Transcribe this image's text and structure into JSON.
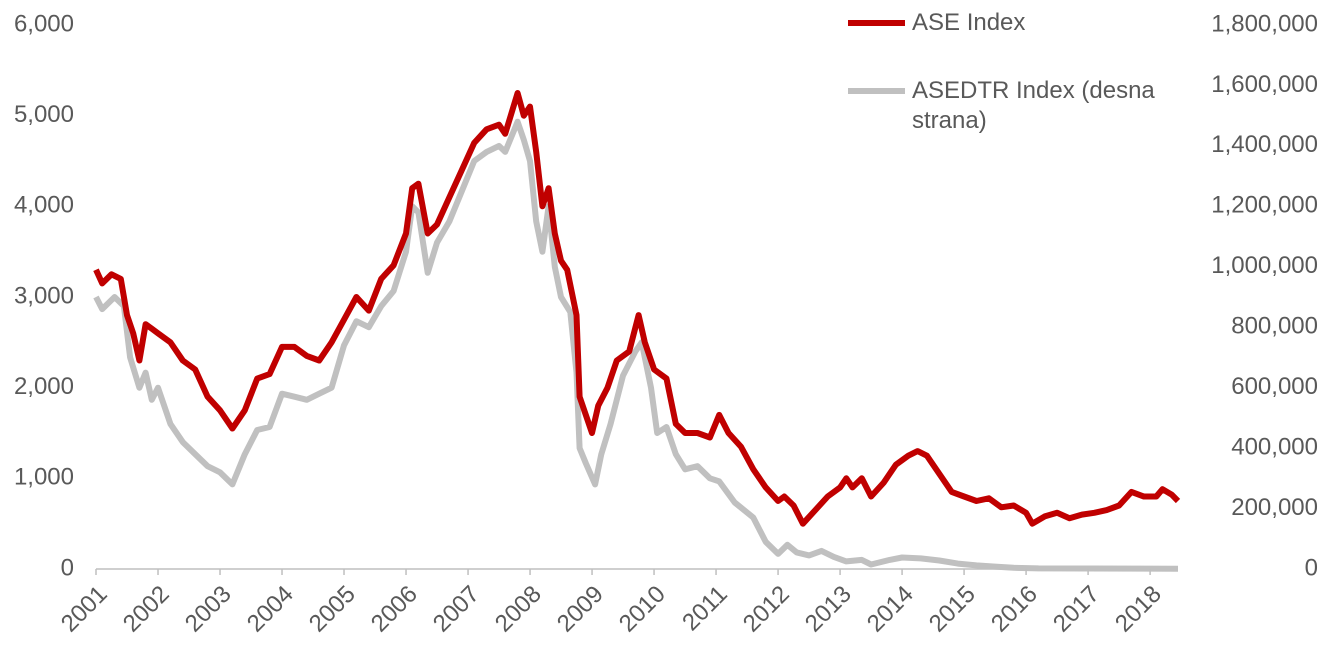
{
  "chart_data": {
    "type": "line",
    "xlim": [
      2001,
      2018.45
    ],
    "xticks": [
      2001,
      2002,
      2003,
      2004,
      2005,
      2006,
      2007,
      2008,
      2009,
      2010,
      2011,
      2012,
      2013,
      2014,
      2015,
      2016,
      2017,
      2018
    ],
    "ylim": [
      0,
      6000
    ],
    "yticks": [
      0,
      {
        "value": 1000,
        "label": "1,000"
      },
      {
        "value": 2000,
        "label": "2,000"
      },
      {
        "value": 3000,
        "label": "3,000"
      },
      {
        "value": 4000,
        "label": "4,000"
      },
      {
        "value": 5000,
        "label": "5,000"
      },
      {
        "value": 6000,
        "label": "6,000"
      }
    ],
    "y2lim": [
      0,
      1800000
    ],
    "y2ticks": [
      0,
      {
        "value": 200000,
        "label": "200,000"
      },
      {
        "value": 400000,
        "label": "400,000"
      },
      {
        "value": 600000,
        "label": "600,000"
      },
      {
        "value": 800000,
        "label": "800,000"
      },
      {
        "value": 1000000,
        "label": "1,000,000"
      },
      {
        "value": 1200000,
        "label": "1,200,000"
      },
      {
        "value": 1400000,
        "label": "1,400,000"
      },
      {
        "value": 1600000,
        "label": "1,600,000"
      },
      {
        "value": 1800000,
        "label": "1,800,000"
      }
    ],
    "series": [
      {
        "name": "ASEDTR Index (desna strana)",
        "color": "#c0c0c0",
        "axis": "y2",
        "x": [
          2001.0,
          2001.1,
          2001.3,
          2001.45,
          2001.55,
          2001.7,
          2001.8,
          2001.9,
          2002.0,
          2002.2,
          2002.4,
          2002.6,
          2002.8,
          2003.0,
          2003.2,
          2003.4,
          2003.6,
          2003.8,
          2004.0,
          2004.2,
          2004.4,
          2004.6,
          2004.8,
          2005.0,
          2005.2,
          2005.4,
          2005.6,
          2005.8,
          2006.0,
          2006.1,
          2006.2,
          2006.35,
          2006.5,
          2006.7,
          2006.9,
          2007.1,
          2007.3,
          2007.5,
          2007.6,
          2007.8,
          2007.9,
          2008.0,
          2008.1,
          2008.2,
          2008.3,
          2008.4,
          2008.5,
          2008.65,
          2008.75,
          2008.8,
          2008.9,
          2009.05,
          2009.15,
          2009.3,
          2009.5,
          2009.7,
          2009.8,
          2009.95,
          2010.05,
          2010.2,
          2010.35,
          2010.5,
          2010.7,
          2010.9,
          2011.05,
          2011.3,
          2011.6,
          2011.8,
          2012.0,
          2012.15,
          2012.3,
          2012.5,
          2012.7,
          2012.9,
          2013.1,
          2013.35,
          2013.5,
          2013.8,
          2014.0,
          2014.3,
          2014.6,
          2014.9,
          2015.2,
          2015.5,
          2015.8,
          2016.2,
          2017.0,
          2018.45
        ],
        "values": [
          900000,
          860000,
          900000,
          870000,
          700000,
          600000,
          650000,
          560000,
          600000,
          480000,
          420000,
          380000,
          340000,
          320000,
          280000,
          380000,
          460000,
          470000,
          580000,
          570000,
          560000,
          580000,
          600000,
          740000,
          820000,
          800000,
          870000,
          920000,
          1050000,
          1200000,
          1180000,
          980000,
          1080000,
          1150000,
          1250000,
          1350000,
          1380000,
          1400000,
          1380000,
          1480000,
          1420000,
          1350000,
          1150000,
          1050000,
          1200000,
          1000000,
          900000,
          850000,
          650000,
          400000,
          350000,
          280000,
          380000,
          480000,
          640000,
          720000,
          750000,
          600000,
          450000,
          470000,
          380000,
          330000,
          340000,
          300000,
          290000,
          220000,
          170000,
          90000,
          50000,
          80000,
          55000,
          45000,
          60000,
          40000,
          25000,
          30000,
          15000,
          30000,
          38000,
          35000,
          28000,
          18000,
          12000,
          8000,
          4000,
          2000,
          1500,
          1000
        ]
      },
      {
        "name": "ASE Index",
        "color": "#c00000",
        "x": [
          2001.0,
          2001.1,
          2001.25,
          2001.4,
          2001.5,
          2001.6,
          2001.7,
          2001.8,
          2001.9,
          2002.0,
          2002.2,
          2002.4,
          2002.6,
          2002.8,
          2003.0,
          2003.2,
          2003.4,
          2003.6,
          2003.8,
          2004.0,
          2004.2,
          2004.4,
          2004.6,
          2004.8,
          2005.0,
          2005.2,
          2005.4,
          2005.6,
          2005.8,
          2006.0,
          2006.1,
          2006.2,
          2006.35,
          2006.5,
          2006.7,
          2006.9,
          2007.1,
          2007.3,
          2007.5,
          2007.6,
          2007.8,
          2007.9,
          2008.0,
          2008.1,
          2008.2,
          2008.3,
          2008.4,
          2008.5,
          2008.6,
          2008.75,
          2008.8,
          2008.9,
          2009.0,
          2009.1,
          2009.25,
          2009.4,
          2009.6,
          2009.75,
          2009.85,
          2010.0,
          2010.2,
          2010.35,
          2010.5,
          2010.7,
          2010.9,
          2011.05,
          2011.2,
          2011.4,
          2011.6,
          2011.8,
          2012.0,
          2012.1,
          2012.25,
          2012.4,
          2012.6,
          2012.8,
          2013.0,
          2013.1,
          2013.2,
          2013.35,
          2013.5,
          2013.7,
          2013.9,
          2014.1,
          2014.25,
          2014.4,
          2014.6,
          2014.8,
          2015.0,
          2015.2,
          2015.4,
          2015.6,
          2015.8,
          2016.0,
          2016.1,
          2016.3,
          2016.5,
          2016.7,
          2016.9,
          2017.1,
          2017.3,
          2017.5,
          2017.7,
          2017.9,
          2018.1,
          2018.2,
          2018.35,
          2018.45
        ],
        "values": [
          3300,
          3150,
          3250,
          3200,
          2800,
          2600,
          2300,
          2700,
          2650,
          2600,
          2500,
          2300,
          2200,
          1900,
          1750,
          1550,
          1750,
          2100,
          2150,
          2450,
          2450,
          2350,
          2300,
          2500,
          2750,
          3000,
          2850,
          3200,
          3350,
          3700,
          4200,
          4250,
          3700,
          3800,
          4100,
          4400,
          4700,
          4850,
          4900,
          4800,
          5250,
          5000,
          5100,
          4600,
          4000,
          4200,
          3700,
          3400,
          3300,
          2800,
          1900,
          1700,
          1500,
          1800,
          2000,
          2300,
          2400,
          2800,
          2500,
          2200,
          2100,
          1600,
          1500,
          1500,
          1450,
          1700,
          1500,
          1350,
          1100,
          900,
          750,
          800,
          700,
          500,
          650,
          800,
          900,
          1000,
          900,
          1000,
          800,
          950,
          1150,
          1250,
          1300,
          1250,
          1050,
          850,
          800,
          750,
          780,
          680,
          700,
          620,
          500,
          580,
          620,
          560,
          600,
          620,
          650,
          700,
          850,
          800,
          800,
          880,
          820,
          750
        ]
      }
    ],
    "legend": "top-right"
  }
}
